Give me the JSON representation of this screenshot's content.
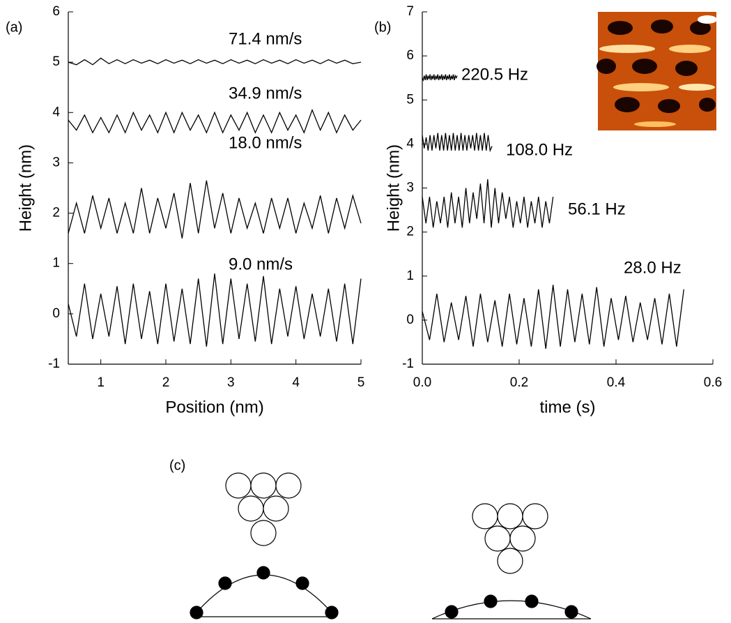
{
  "chart_data": [
    {
      "type": "line",
      "panel_label": "(a)",
      "x_label": "Position (nm)",
      "y_label": "Height (nm)",
      "xlim": [
        0.5,
        5
      ],
      "xticks": [
        1,
        2,
        3,
        4,
        5
      ],
      "ylim": [
        -1,
        6
      ],
      "yticks": [
        -1,
        0,
        1,
        2,
        3,
        4,
        5,
        6
      ],
      "x": [
        0.5,
        0.625,
        0.75,
        0.875,
        1.0,
        1.125,
        1.25,
        1.375,
        1.5,
        1.625,
        1.75,
        1.875,
        2.0,
        2.125,
        2.25,
        2.375,
        2.5,
        2.625,
        2.75,
        2.875,
        3.0,
        3.125,
        3.25,
        3.375,
        3.5,
        3.625,
        3.75,
        3.875,
        4.0,
        4.125,
        4.25,
        4.375,
        4.5,
        4.625,
        4.75,
        4.875,
        5.0
      ],
      "series": [
        {
          "name": "71.4 nm/s",
          "color": "#000000",
          "values": [
            5.0,
            4.95,
            5.05,
            4.95,
            5.08,
            4.97,
            5.05,
            4.97,
            5.05,
            4.98,
            5.04,
            4.97,
            5.05,
            4.98,
            5.04,
            4.97,
            5.05,
            4.98,
            5.04,
            4.97,
            5.05,
            4.98,
            5.04,
            4.97,
            5.05,
            4.98,
            5.04,
            4.97,
            5.05,
            4.98,
            5.04,
            4.97,
            5.05,
            4.98,
            5.04,
            4.97,
            5.0
          ]
        },
        {
          "name": "34.9 nm/s",
          "color": "#000000",
          "values": [
            3.85,
            3.65,
            3.95,
            3.6,
            3.9,
            3.6,
            3.95,
            3.6,
            4.0,
            3.65,
            3.95,
            3.6,
            4.0,
            3.6,
            4.0,
            3.65,
            3.95,
            3.6,
            4.0,
            3.6,
            3.95,
            3.65,
            4.0,
            3.6,
            3.95,
            3.6,
            4.0,
            3.65,
            3.95,
            3.6,
            4.05,
            3.65,
            4.0,
            3.6,
            3.95,
            3.65,
            3.85
          ]
        },
        {
          "name": "18.0 nm/s",
          "color": "#000000",
          "values": [
            1.6,
            2.2,
            1.6,
            2.35,
            1.7,
            2.3,
            1.6,
            2.2,
            1.6,
            2.5,
            1.6,
            2.3,
            1.7,
            2.4,
            1.5,
            2.6,
            1.6,
            2.65,
            1.7,
            2.4,
            1.6,
            2.3,
            1.7,
            2.2,
            1.6,
            2.3,
            1.7,
            2.3,
            1.6,
            2.2,
            1.7,
            2.35,
            1.6,
            2.3,
            1.7,
            2.35,
            1.8
          ]
        },
        {
          "name": "9.0 nm/s",
          "color": "#000000",
          "values": [
            0.2,
            -0.45,
            0.6,
            -0.5,
            0.4,
            -0.45,
            0.55,
            -0.6,
            0.6,
            -0.5,
            0.45,
            -0.6,
            0.6,
            -0.55,
            0.5,
            -0.6,
            0.7,
            -0.65,
            0.8,
            -0.6,
            0.7,
            -0.5,
            0.6,
            -0.55,
            0.75,
            -0.6,
            0.5,
            -0.45,
            0.55,
            -0.5,
            0.4,
            -0.45,
            0.5,
            -0.55,
            0.6,
            -0.6,
            0.7
          ]
        }
      ]
    },
    {
      "type": "line",
      "panel_label": "(b)",
      "x_label": "time (s)",
      "y_label": "Height (nm)",
      "xlim": [
        0,
        0.6
      ],
      "xticks": [
        {
          "value": 0,
          "label": "0.0"
        },
        0.2,
        0.4,
        0.6
      ],
      "ylim": [
        -1,
        7
      ],
      "yticks": [
        -1,
        0,
        1,
        2,
        3,
        4,
        5,
        6,
        7
      ],
      "series": [
        {
          "name": "220.5 Hz",
          "color": "#000000",
          "x": [
            0,
            0.002,
            0.004,
            0.006,
            0.008,
            0.01,
            0.012,
            0.014,
            0.016,
            0.018,
            0.02,
            0.022,
            0.024,
            0.026,
            0.028,
            0.03,
            0.032,
            0.034,
            0.036,
            0.038,
            0.04,
            0.042,
            0.044,
            0.046,
            0.048,
            0.05,
            0.052,
            0.054,
            0.056,
            0.058,
            0.06,
            0.062,
            0.064,
            0.066,
            0.068,
            0.07,
            0.072
          ],
          "values": [
            5.5,
            5.45,
            5.55,
            5.45,
            5.58,
            5.45,
            5.55,
            5.47,
            5.58,
            5.45,
            5.55,
            5.47,
            5.58,
            5.45,
            5.55,
            5.47,
            5.58,
            5.45,
            5.55,
            5.47,
            5.58,
            5.45,
            5.55,
            5.47,
            5.58,
            5.45,
            5.55,
            5.47,
            5.58,
            5.45,
            5.55,
            5.47,
            5.58,
            5.45,
            5.55,
            5.5,
            5.55
          ]
        },
        {
          "name": "108.0 Hz",
          "color": "#000000",
          "x": [
            0,
            0.004,
            0.008,
            0.012,
            0.016,
            0.02,
            0.024,
            0.028,
            0.032,
            0.036,
            0.04,
            0.044,
            0.048,
            0.052,
            0.056,
            0.06,
            0.064,
            0.068,
            0.072,
            0.076,
            0.08,
            0.084,
            0.088,
            0.092,
            0.096,
            0.1,
            0.104,
            0.108,
            0.112,
            0.116,
            0.12,
            0.124,
            0.128,
            0.132,
            0.136,
            0.14,
            0.144
          ],
          "values": [
            4.2,
            3.9,
            4.15,
            3.85,
            4.2,
            3.85,
            4.2,
            3.9,
            4.25,
            3.85,
            4.2,
            3.85,
            4.25,
            3.85,
            4.2,
            3.85,
            4.25,
            3.85,
            4.2,
            3.85,
            4.25,
            3.85,
            4.2,
            3.85,
            4.2,
            3.9,
            4.2,
            3.85,
            4.25,
            3.85,
            4.2,
            3.85,
            4.25,
            3.85,
            4.2,
            3.85,
            3.95
          ]
        },
        {
          "name": "56.1 Hz",
          "color": "#000000",
          "x": [
            0,
            0.0075,
            0.015,
            0.0225,
            0.03,
            0.0375,
            0.045,
            0.0525,
            0.06,
            0.0675,
            0.075,
            0.0825,
            0.09,
            0.0975,
            0.105,
            0.1125,
            0.12,
            0.1275,
            0.135,
            0.1425,
            0.15,
            0.1575,
            0.165,
            0.1725,
            0.18,
            0.1875,
            0.195,
            0.2025,
            0.21,
            0.2175,
            0.225,
            0.2325,
            0.24,
            0.2475,
            0.255,
            0.2625,
            0.27
          ],
          "values": [
            2.8,
            2.2,
            2.8,
            2.1,
            2.7,
            2.2,
            2.8,
            2.1,
            2.9,
            2.2,
            2.8,
            2.1,
            3.0,
            2.2,
            2.9,
            2.3,
            3.1,
            2.2,
            3.2,
            2.1,
            3.0,
            2.2,
            2.9,
            2.3,
            2.8,
            2.1,
            2.7,
            2.2,
            2.8,
            2.1,
            2.7,
            2.2,
            2.8,
            2.1,
            2.7,
            2.2,
            2.8
          ]
        },
        {
          "name": "28.0 Hz",
          "color": "#000000",
          "x": [
            0,
            0.015,
            0.03,
            0.045,
            0.06,
            0.075,
            0.09,
            0.105,
            0.12,
            0.135,
            0.15,
            0.165,
            0.18,
            0.195,
            0.21,
            0.225,
            0.24,
            0.255,
            0.27,
            0.285,
            0.3,
            0.315,
            0.33,
            0.345,
            0.36,
            0.375,
            0.39,
            0.405,
            0.42,
            0.435,
            0.45,
            0.465,
            0.48,
            0.495,
            0.51,
            0.525,
            0.54
          ],
          "values": [
            0.2,
            -0.45,
            0.6,
            -0.5,
            0.4,
            -0.45,
            0.55,
            -0.6,
            0.6,
            -0.5,
            0.45,
            -0.6,
            0.6,
            -0.55,
            0.5,
            -0.6,
            0.7,
            -0.65,
            0.8,
            -0.6,
            0.7,
            -0.5,
            0.6,
            -0.55,
            0.75,
            -0.6,
            0.5,
            -0.45,
            0.55,
            -0.5,
            0.4,
            -0.45,
            0.5,
            -0.55,
            0.6,
            -0.6,
            0.7
          ]
        }
      ]
    }
  ],
  "diagram": {
    "panel_label": "(c)"
  }
}
